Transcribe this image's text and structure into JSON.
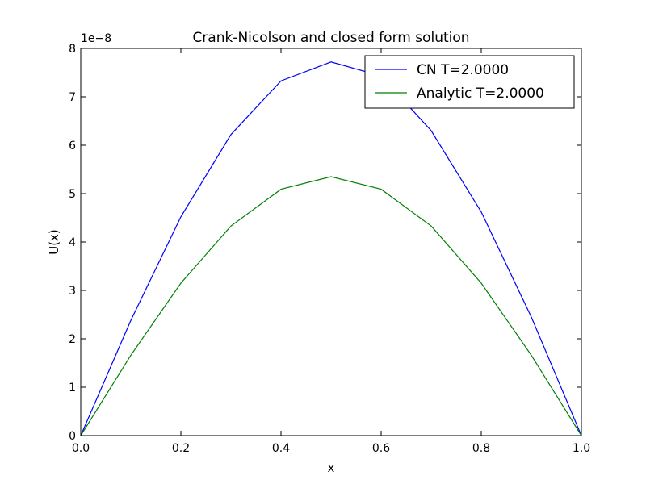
{
  "chart_data": {
    "type": "line",
    "title": "Crank-Nicolson and closed form solution",
    "xlabel": "x",
    "ylabel": "U(x)",
    "y_offset_label": "1e−8",
    "xlim": [
      0.0,
      1.0
    ],
    "ylim": [
      0,
      8
    ],
    "x_ticks": [
      "0.0",
      "0.2",
      "0.4",
      "0.6",
      "0.8",
      "1.0"
    ],
    "y_ticks": [
      "0",
      "1",
      "2",
      "3",
      "4",
      "5",
      "6",
      "7",
      "8"
    ],
    "grid": false,
    "legend_position": "top-right",
    "x": [
      0.0,
      0.1,
      0.2,
      0.3,
      0.4,
      0.5,
      0.6,
      0.7,
      0.8,
      0.9,
      1.0
    ],
    "series": [
      {
        "name": "CN T=2.0000",
        "color": "#0000ff",
        "values": [
          0,
          2.38,
          4.52,
          6.22,
          7.33,
          7.72,
          7.43,
          6.3,
          4.62,
          2.45,
          0
        ]
      },
      {
        "name": "Analytic T=2.0000",
        "color": "#008000",
        "values": [
          0,
          1.66,
          3.15,
          4.33,
          5.09,
          5.35,
          5.09,
          4.33,
          3.15,
          1.66,
          0
        ]
      }
    ]
  }
}
